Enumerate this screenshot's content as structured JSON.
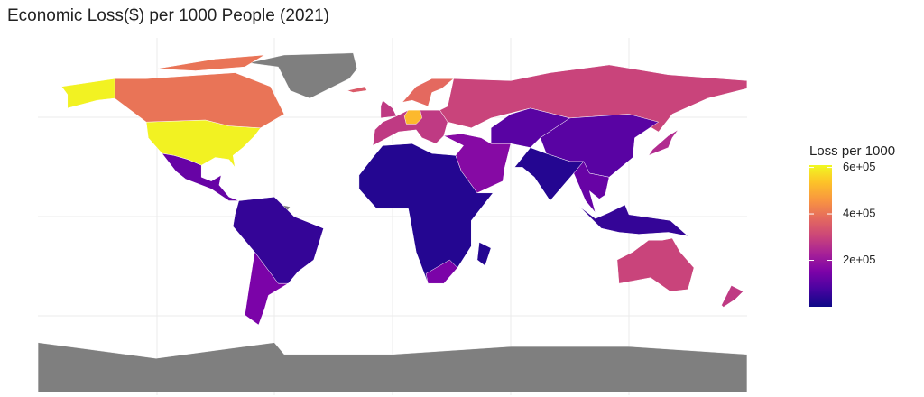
{
  "chart_data": {
    "type": "choropleth",
    "title": "Economic Loss($) per 1000 People (2021)",
    "legend_title": "Loss per 1000",
    "colormap": "plasma",
    "clim": [
      0,
      610000
    ],
    "cticks": [
      {
        "value": 200000,
        "label": "2e+05"
      },
      {
        "value": 400000,
        "label": "4e+05"
      },
      {
        "value": 600000,
        "label": "6e+05"
      }
    ],
    "values": [
      600000,
      400000,
      120000,
      300000,
      280000,
      100000,
      30000,
      30000,
      50000,
      150000,
      300000,
      170000,
      100000,
      50000,
      250000,
      280000,
      520000,
      380000,
      150000,
      120000,
      350000
    ],
    "grid": true
  }
}
